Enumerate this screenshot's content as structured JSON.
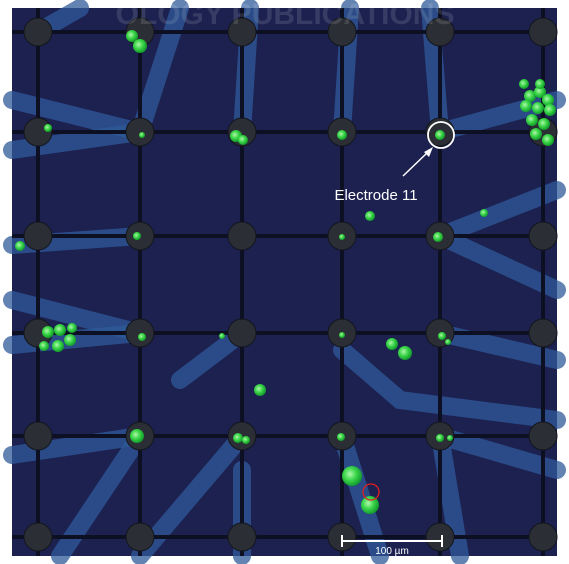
{
  "watermark": "OLOGY PUBLICATIONS",
  "annotation": {
    "label": "Electrode 11"
  },
  "scale_bar": {
    "label": "100 µm"
  }
}
